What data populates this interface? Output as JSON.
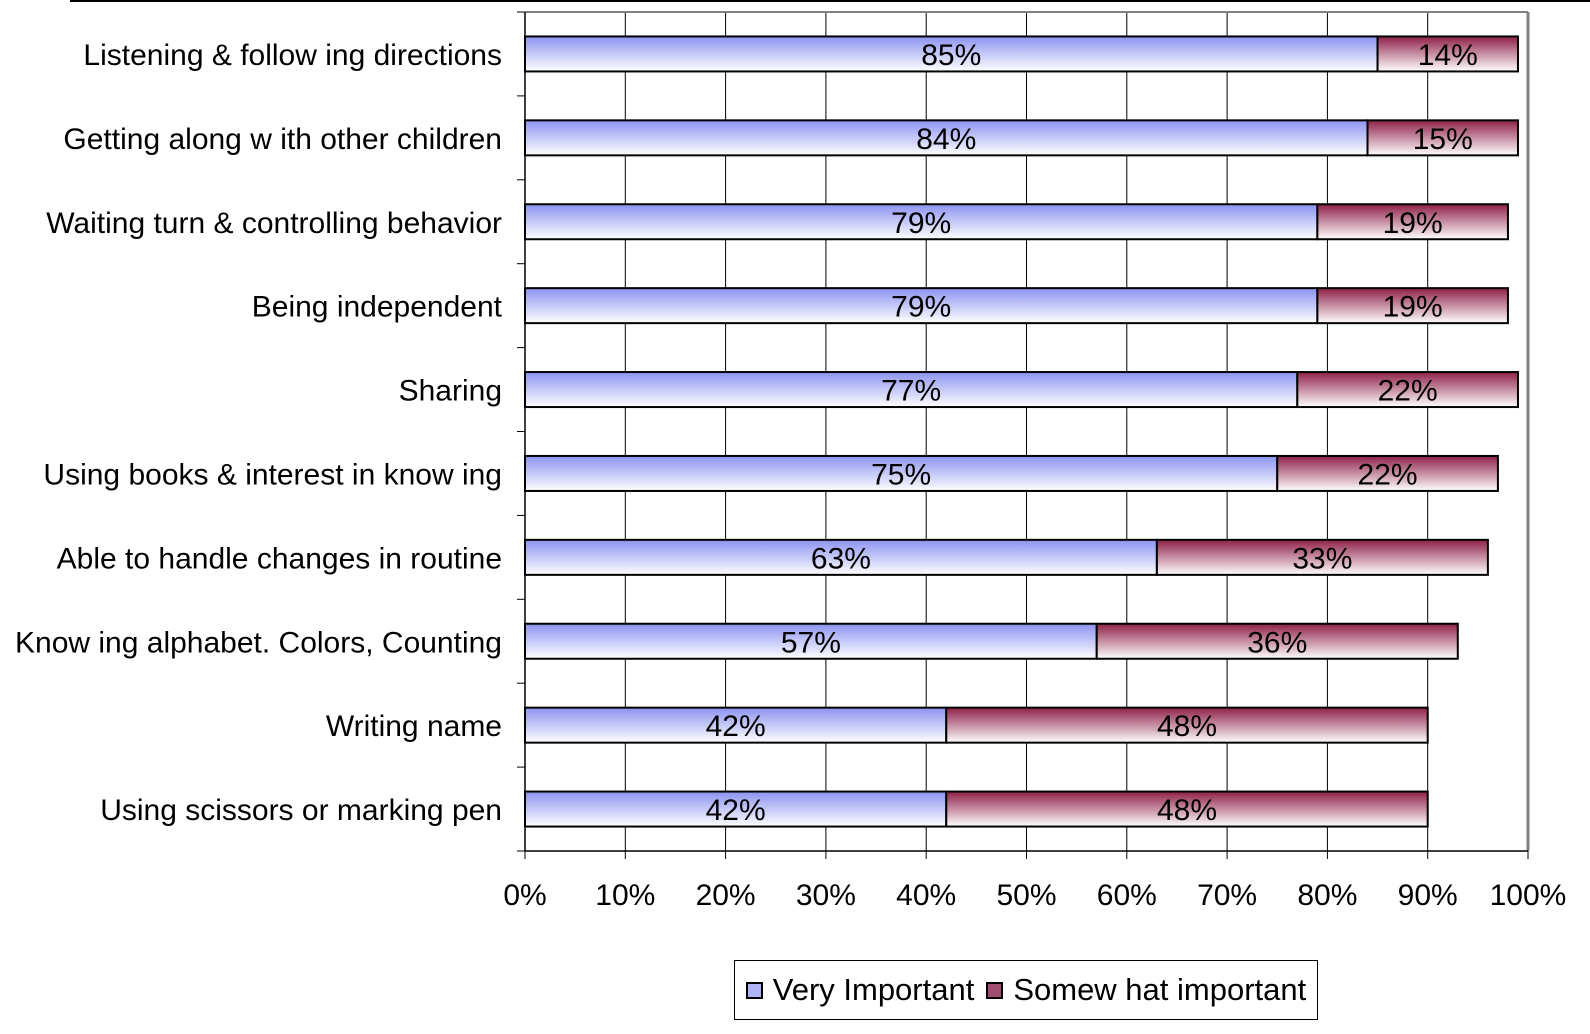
{
  "chart_data": {
    "type": "bar",
    "orientation": "horizontal",
    "stacked": true,
    "categories": [
      "Listening & follow ing directions",
      "Getting along w ith other children",
      "Waiting turn & controlling behavior",
      "Being independent",
      "Sharing",
      "Using books & interest in know ing",
      "Able to handle changes in routine",
      "Know ing alphabet. Colors, Counting",
      "Writing name",
      "Using scissors or marking pen"
    ],
    "series": [
      {
        "name": "Very Important",
        "values": [
          85,
          84,
          79,
          79,
          77,
          75,
          63,
          57,
          42,
          42
        ],
        "labels": [
          "85%",
          "84%",
          "79%",
          "79%",
          "77%",
          "75%",
          "63%",
          "57%",
          "42%",
          "42%"
        ],
        "color": "#aeb4f6",
        "gradient": [
          "#8c93f0",
          "#ffffff"
        ]
      },
      {
        "name": "Somew hat important",
        "values": [
          14,
          15,
          19,
          19,
          22,
          22,
          33,
          36,
          48,
          48
        ],
        "labels": [
          "14%",
          "15%",
          "19%",
          "19%",
          "22%",
          "22%",
          "33%",
          "36%",
          "48%",
          "48%"
        ],
        "color": "#a34d70",
        "gradient": [
          "#8f2048",
          "#ffffff"
        ]
      }
    ],
    "x_ticks": [
      "0%",
      "10%",
      "20%",
      "30%",
      "40%",
      "50%",
      "60%",
      "70%",
      "80%",
      "90%",
      "100%"
    ],
    "xlim": [
      0,
      100
    ],
    "grid": true,
    "legend_position": "bottom"
  }
}
